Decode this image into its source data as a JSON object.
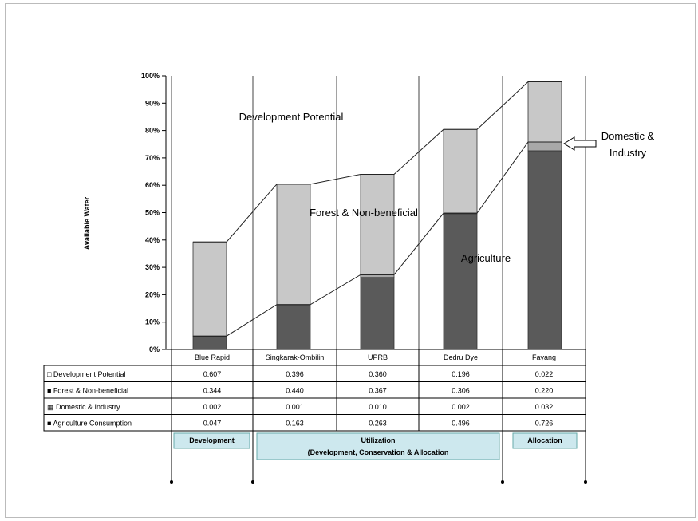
{
  "chart_data": {
    "type": "bar",
    "stacked": true,
    "ylabel": "Available Water",
    "yticks": [
      "0%",
      "10%",
      "20%",
      "30%",
      "40%",
      "50%",
      "60%",
      "70%",
      "80%",
      "90%",
      "100%"
    ],
    "ylim": [
      0,
      1
    ],
    "categories": [
      "Blue Rapid",
      "Singkarak-Ombilin",
      "UPRB",
      "Dedru Dye",
      "Fayang"
    ],
    "series": [
      {
        "name": "Agriculture Consumption",
        "values": [
          0.047,
          0.163,
          0.263,
          0.496,
          0.726
        ],
        "color": "#5a5a5a",
        "marker": "■"
      },
      {
        "name": "Domestic & Industry",
        "values": [
          0.002,
          0.001,
          0.01,
          0.002,
          0.032
        ],
        "color": "#a8a8a8",
        "marker": "▦"
      },
      {
        "name": "Forest & Non-beneficial",
        "values": [
          0.344,
          0.44,
          0.367,
          0.306,
          0.22
        ],
        "color": "#c8c8c8",
        "marker": "■"
      },
      {
        "name": "Development Potential",
        "values": [
          0.607,
          0.396,
          0.36,
          0.196,
          0.022
        ],
        "color": "#ffffff",
        "marker": "□"
      }
    ],
    "table_rows": [
      {
        "label": "Development Potential",
        "marker": "□",
        "cells": [
          "0.607",
          "0.396",
          "0.360",
          "0.196",
          "0.022"
        ]
      },
      {
        "label": "Forest & Non-beneficial",
        "marker": "■",
        "cells": [
          "0.344",
          "0.440",
          "0.367",
          "0.306",
          "0.220"
        ]
      },
      {
        "label": "Domestic & Industry",
        "marker": "▦",
        "cells": [
          "0.002",
          "0.001",
          "0.010",
          "0.002",
          "0.032"
        ]
      },
      {
        "label": "Agriculture Consumption",
        "marker": "■",
        "cells": [
          "0.047",
          "0.163",
          "0.263",
          "0.496",
          "0.726"
        ]
      }
    ],
    "annotations": {
      "development_potential": "Development Potential",
      "forest": "Forest & Non-beneficial",
      "agriculture": "Agriculture",
      "domestic_line1": "Domestic &",
      "domestic_line2": "Industry"
    },
    "phases": [
      {
        "label_line1": "Development",
        "label_line2": ""
      },
      {
        "label_line1": "Utilization",
        "label_line2": "(Development, Conservation & Allocation"
      },
      {
        "label_line1": "Allocation",
        "label_line2": ""
      }
    ],
    "grid": false,
    "legend": "table-below"
  }
}
